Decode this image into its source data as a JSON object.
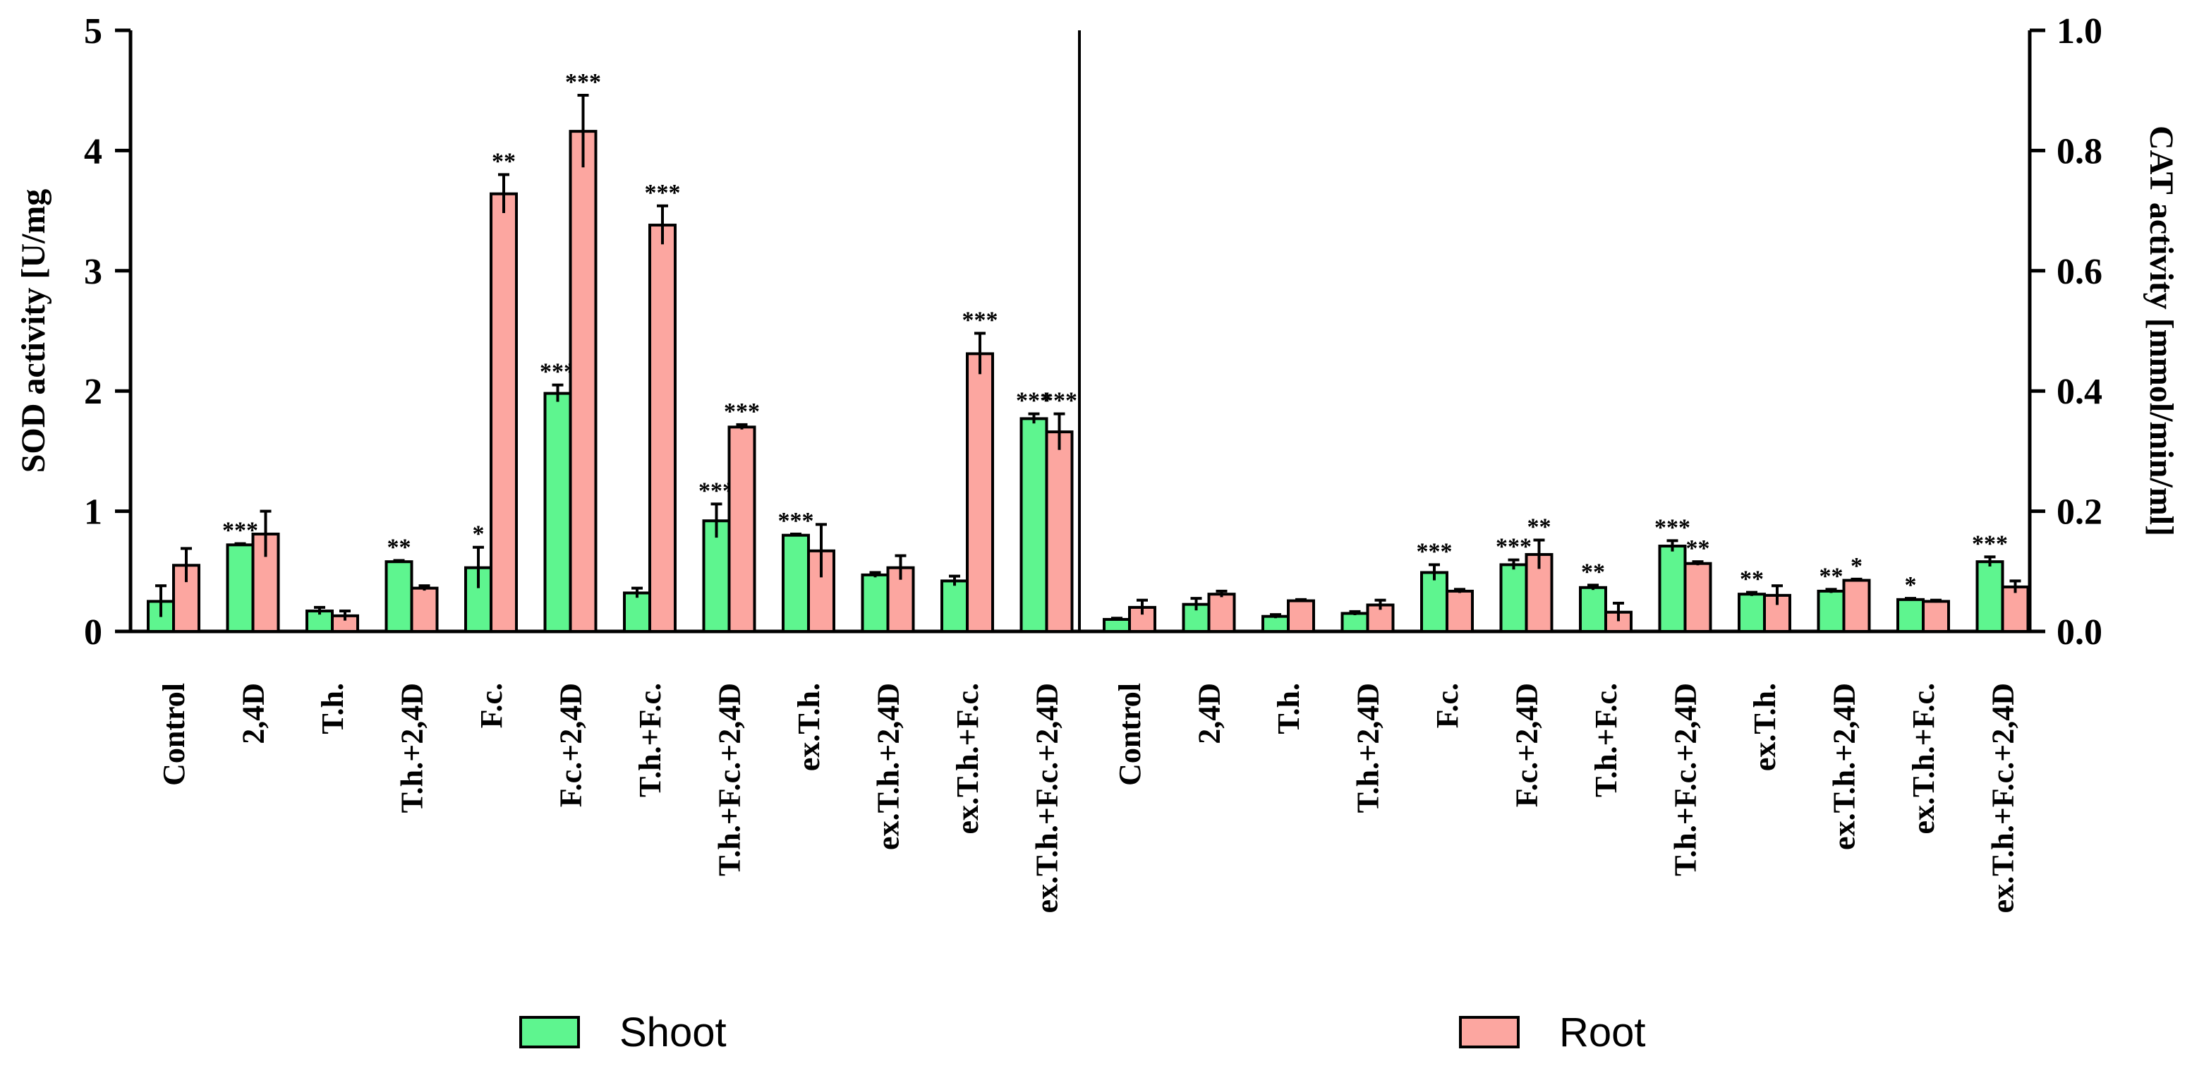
{
  "chart_data": {
    "type": "bar",
    "colors": {
      "Shoot": "#5ef58f",
      "Root": "#fca6a0"
    },
    "legend": {
      "placement": "bottom",
      "entries": [
        "Shoot",
        "Root"
      ]
    },
    "categories": [
      "Control",
      "2,4D",
      "T.h.",
      "T.h.+2,4D",
      "F.c.",
      "F.c.+2,4D",
      "T.h.+F.c.",
      "T.h.+F.c.+2,4D",
      "ex.T.h.",
      "ex.T.h.+2,4D",
      "ex.T.h.+F.c.",
      "ex.T.h.+F.c.+2,4D"
    ],
    "panels": [
      {
        "ylabel": "SOD activity [U/mg",
        "ylim": [
          0,
          5
        ],
        "yticks": [
          "0",
          "1",
          "2",
          "3",
          "4",
          "5"
        ],
        "series": [
          {
            "name": "Shoot",
            "values": [
              0.25,
              0.72,
              0.17,
              0.58,
              0.53,
              1.98,
              0.32,
              0.92,
              0.8,
              0.47,
              0.42,
              1.77
            ],
            "errors": [
              0.13,
              0.01,
              0.03,
              0.01,
              0.17,
              0.07,
              0.04,
              0.14,
              0.01,
              0.02,
              0.04,
              0.04
            ],
            "significance": [
              "",
              "***",
              "",
              "**",
              "*",
              "***",
              "",
              "***",
              "***",
              "",
              "",
              "***"
            ]
          },
          {
            "name": "Root",
            "values": [
              0.55,
              0.81,
              0.13,
              0.36,
              3.64,
              4.16,
              3.38,
              1.7,
              0.67,
              0.53,
              2.31,
              1.66
            ],
            "errors": [
              0.14,
              0.19,
              0.04,
              0.02,
              0.16,
              0.3,
              0.16,
              0.02,
              0.22,
              0.1,
              0.17,
              0.15
            ],
            "significance": [
              "",
              "",
              "",
              "",
              "**",
              "***",
              "***",
              "***",
              "",
              "",
              "***",
              "***"
            ]
          }
        ]
      },
      {
        "ylabel": "CAT activity [mmol/min/ml]",
        "ylim": [
          0,
          1.0
        ],
        "yticks": [
          "0.0",
          "0.2",
          "0.4",
          "0.6",
          "0.8",
          "1.0"
        ],
        "series": [
          {
            "name": "Shoot",
            "values": [
              0.02,
              0.045,
              0.025,
              0.03,
              0.098,
              0.111,
              0.073,
              0.142,
              0.062,
              0.067,
              0.053,
              0.116
            ],
            "errors": [
              0.002,
              0.01,
              0.003,
              0.003,
              0.013,
              0.008,
              0.004,
              0.009,
              0.003,
              0.003,
              0.002,
              0.008
            ],
            "significance": [
              "",
              "",
              "",
              "",
              "***",
              "***",
              "**",
              "***",
              "**",
              "**",
              "*",
              "***"
            ]
          },
          {
            "name": "Root",
            "values": [
              0.04,
              0.062,
              0.051,
              0.044,
              0.067,
              0.128,
              0.032,
              0.113,
              0.06,
              0.085,
              0.05,
              0.074
            ],
            "errors": [
              0.012,
              0.005,
              0.002,
              0.008,
              0.003,
              0.024,
              0.015,
              0.003,
              0.016,
              0.002,
              0.002,
              0.01
            ],
            "significance": [
              "",
              "",
              "",
              "",
              "",
              "**",
              "",
              "**",
              "",
              "*",
              "",
              ""
            ]
          }
        ]
      }
    ]
  }
}
